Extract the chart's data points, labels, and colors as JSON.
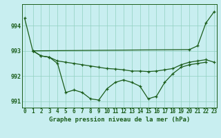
{
  "title": "Graphe pression niveau de la mer (hPa)",
  "background_color": "#c8eef0",
  "grid_color": "#90d0c0",
  "line_color": "#1a5c1a",
  "hours": [
    0,
    1,
    2,
    3,
    4,
    5,
    6,
    7,
    8,
    9,
    10,
    11,
    12,
    13,
    14,
    15,
    16,
    17,
    18,
    19,
    20,
    21,
    22,
    23
  ],
  "line_diagonal": [
    994.3,
    993.0,
    null,
    null,
    null,
    null,
    null,
    null,
    null,
    null,
    null,
    null,
    null,
    null,
    null,
    null,
    null,
    null,
    null,
    null,
    993.05,
    993.2,
    994.1,
    994.55
  ],
  "line_flat": [
    null,
    993.0,
    992.8,
    992.75,
    992.6,
    992.55,
    992.5,
    992.45,
    992.4,
    992.35,
    992.3,
    992.28,
    992.25,
    992.2,
    992.2,
    992.18,
    992.2,
    992.25,
    992.3,
    992.45,
    992.55,
    992.6,
    992.65,
    992.55
  ],
  "line_jagged": [
    null,
    993.0,
    992.8,
    992.75,
    992.5,
    991.35,
    991.45,
    991.35,
    991.1,
    991.05,
    991.5,
    991.75,
    991.85,
    991.75,
    991.6,
    991.1,
    991.2,
    991.75,
    992.1,
    992.35,
    992.45,
    992.5,
    992.55,
    null
  ],
  "ylim": [
    990.75,
    994.85
  ],
  "yticks": [
    991,
    992,
    993,
    994
  ],
  "tick_fontsize": 5.5,
  "title_fontsize": 6.5
}
